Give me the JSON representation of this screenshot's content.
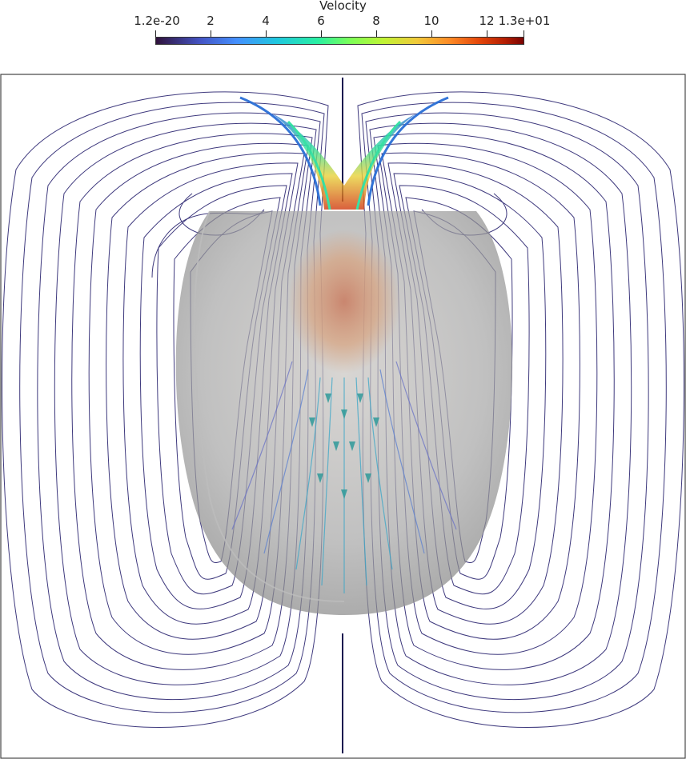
{
  "colorbar": {
    "title": "Velocity",
    "ticks": [
      "1.2e-20",
      "2",
      "4",
      "6",
      "8",
      "10",
      "12",
      "1.3e+01"
    ],
    "colors": [
      "#30123b",
      "#4454c4",
      "#1fc8de",
      "#7dff56",
      "#f1ca3a",
      "#e4460a",
      "#7a0403"
    ]
  },
  "scene": {
    "streamline_color_low": "#1a1450",
    "streamline_color_mid": "#3b3fa0",
    "surface_color": "#9a9a9a",
    "background": "#ffffff"
  }
}
